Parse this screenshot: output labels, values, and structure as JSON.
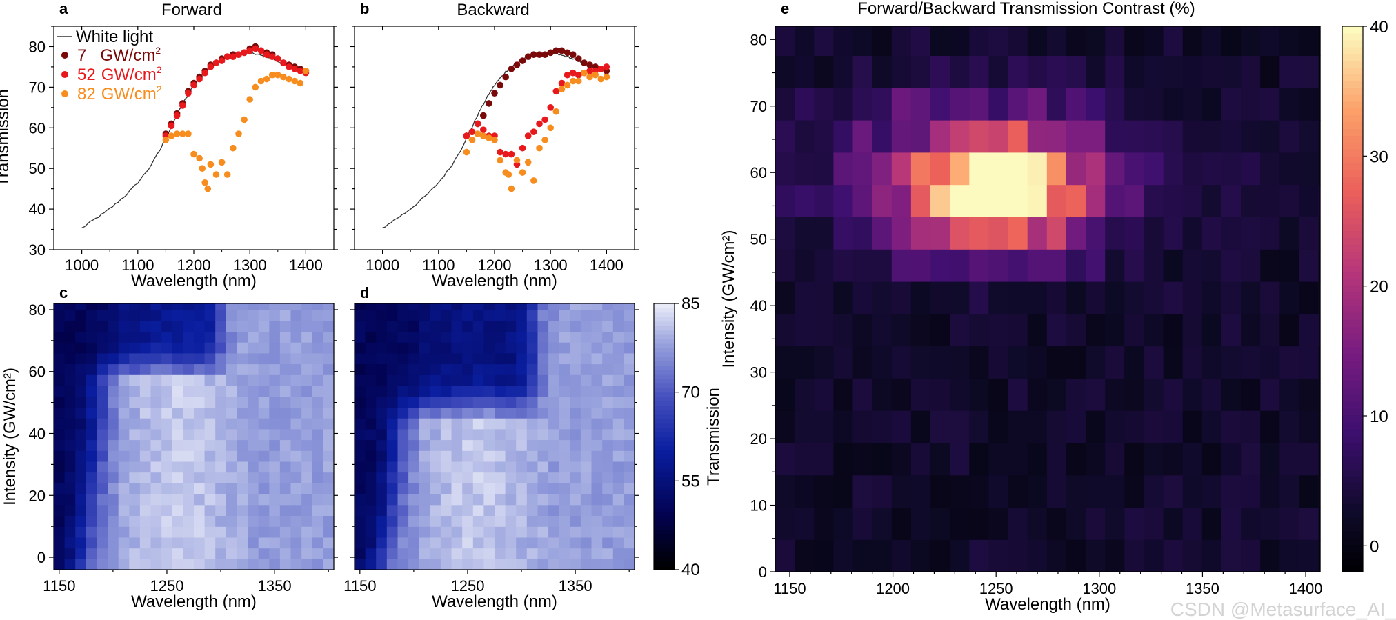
{
  "watermark": "CSDN @Metasurface_AI_",
  "colorbars": {
    "blue": {
      "ticks": [
        "40",
        "55",
        "70",
        "85"
      ],
      "label": "Transmission"
    },
    "magma": {
      "ticks": [
        "0",
        "10",
        "20",
        "30",
        "40"
      ],
      "label": ""
    }
  },
  "chart_data": [
    {
      "id": "a",
      "type": "scatter",
      "panel_label": "a",
      "title": "Forward",
      "xlabel": "Wavelength (nm)",
      "ylabel": "Transmission",
      "xlim": [
        950,
        1450
      ],
      "ylim": [
        30,
        85
      ],
      "xticks": [
        "1000",
        "1100",
        "1200",
        "1300",
        "1400"
      ],
      "yticks": [
        "30",
        "40",
        "50",
        "60",
        "70",
        "80"
      ],
      "legend": {
        "line": "White light",
        "items": [
          {
            "value": "7",
            "unit": "GW/cm",
            "sup": "2",
            "color": "#7a0a0a"
          },
          {
            "value": "52",
            "unit": "GW/cm",
            "sup": "2",
            "color": "#e8191c"
          },
          {
            "value": "82",
            "unit": "GW/cm",
            "sup": "2",
            "color": "#f78d1e"
          }
        ]
      },
      "white_light": {
        "x": [
          1000,
          1020,
          1040,
          1060,
          1080,
          1100,
          1120,
          1140,
          1150,
          1160,
          1170,
          1180,
          1190,
          1200,
          1210,
          1220,
          1230,
          1240,
          1250,
          1260,
          1270,
          1280,
          1290,
          1300,
          1310,
          1320,
          1330,
          1340,
          1350,
          1360,
          1370,
          1380,
          1390,
          1400
        ],
        "y": [
          35.3,
          37.2,
          39,
          41.2,
          43.6,
          46.5,
          50,
          54.6,
          57.5,
          60.2,
          63.2,
          65.8,
          68.3,
          70.5,
          72.2,
          73.8,
          75,
          75.9,
          76.8,
          77.5,
          78,
          78.4,
          78.4,
          78.2,
          78.2,
          77.8,
          77.5,
          77,
          76.3,
          75.8,
          75.4,
          74.8,
          74.4,
          74
        ]
      },
      "series": [
        {
          "name": "7 GW/cm2",
          "color": "#7a0a0a",
          "x": [
            1150,
            1160,
            1170,
            1180,
            1190,
            1200,
            1210,
            1220,
            1230,
            1240,
            1250,
            1260,
            1270,
            1280,
            1290,
            1300,
            1310,
            1320,
            1330,
            1340,
            1350,
            1360,
            1370,
            1380,
            1390,
            1400
          ],
          "y": [
            58.5,
            61,
            63.5,
            66,
            69,
            71,
            72.5,
            74,
            75.5,
            76,
            77,
            77.5,
            78,
            78,
            78.5,
            79.5,
            80,
            79,
            78.5,
            78,
            77,
            76,
            75.5,
            75,
            74.5,
            74
          ]
        },
        {
          "name": "52 GW/cm2",
          "color": "#e8191c",
          "x": [
            1150,
            1160,
            1170,
            1180,
            1190,
            1200,
            1210,
            1220,
            1230,
            1240,
            1250,
            1260,
            1270,
            1280,
            1290,
            1300,
            1310,
            1320,
            1330,
            1340,
            1350,
            1360,
            1370,
            1380,
            1390,
            1400
          ],
          "y": [
            58,
            60.5,
            63,
            65.5,
            68.5,
            70.5,
            72,
            73.5,
            75,
            76,
            76.5,
            77.5,
            77.5,
            78,
            78.5,
            79,
            79.5,
            79,
            78,
            77.5,
            77,
            76,
            75,
            74.5,
            74,
            73.5
          ]
        },
        {
          "name": "82 GW/cm2",
          "color": "#f78d1e",
          "x": [
            1150,
            1160,
            1170,
            1180,
            1190,
            1200,
            1210,
            1215,
            1220,
            1225,
            1230,
            1240,
            1250,
            1260,
            1270,
            1280,
            1290,
            1300,
            1310,
            1320,
            1330,
            1340,
            1350,
            1360,
            1370,
            1380,
            1390,
            1400
          ],
          "y": [
            57,
            58,
            58.5,
            58.5,
            58.5,
            53.5,
            52.5,
            50,
            46.5,
            45,
            51,
            48.5,
            51.5,
            48.5,
            55,
            58.5,
            62,
            67,
            70,
            71.5,
            72,
            73,
            73,
            72.5,
            72,
            71.5,
            71,
            74
          ]
        }
      ]
    },
    {
      "id": "b",
      "type": "scatter",
      "panel_label": "b",
      "title": "Backward",
      "xlabel": "Wavelength (nm)",
      "ylabel": "",
      "xlim": [
        950,
        1450
      ],
      "ylim": [
        30,
        85
      ],
      "xticks": [
        "1000",
        "1100",
        "1200",
        "1300",
        "1400"
      ],
      "yticks": [],
      "white_light": {
        "x": [
          1000,
          1020,
          1040,
          1060,
          1080,
          1100,
          1120,
          1140,
          1150,
          1160,
          1170,
          1180,
          1190,
          1200,
          1210,
          1220,
          1230,
          1240,
          1250,
          1260,
          1270,
          1280,
          1290,
          1300,
          1310,
          1320,
          1330,
          1340,
          1350,
          1360,
          1370,
          1380,
          1390,
          1400
        ],
        "y": [
          35.3,
          37.2,
          39,
          41.2,
          43.6,
          46.5,
          50,
          54.6,
          57.5,
          60.2,
          63.2,
          65.8,
          68.3,
          70.5,
          72.2,
          73.8,
          75,
          75.9,
          76.8,
          77.5,
          78,
          78.4,
          78.4,
          78.2,
          78.2,
          77.8,
          77.5,
          77,
          76.3,
          75.8,
          75.4,
          74.8,
          74.4,
          74
        ]
      },
      "series": [
        {
          "name": "7 GW/cm2",
          "color": "#7a0a0a",
          "x": [
            1150,
            1160,
            1170,
            1180,
            1190,
            1200,
            1210,
            1220,
            1230,
            1240,
            1250,
            1260,
            1270,
            1280,
            1290,
            1300,
            1310,
            1320,
            1330,
            1340,
            1350,
            1360,
            1370,
            1380,
            1390,
            1400
          ],
          "y": [
            58,
            59,
            61,
            63,
            66,
            68.5,
            70.5,
            72.5,
            74.5,
            75.5,
            76.5,
            77.5,
            78,
            78,
            78,
            78.5,
            79,
            79,
            78.5,
            78,
            77,
            76,
            75.5,
            75,
            74.5,
            74
          ]
        },
        {
          "name": "52 GW/cm2",
          "color": "#e8191c",
          "x": [
            1150,
            1160,
            1170,
            1180,
            1190,
            1200,
            1210,
            1220,
            1230,
            1240,
            1250,
            1260,
            1270,
            1280,
            1290,
            1300,
            1310,
            1320,
            1330,
            1340,
            1350,
            1360,
            1370,
            1380,
            1390,
            1400
          ],
          "y": [
            58,
            59,
            61,
            59.5,
            58,
            58,
            54,
            53.5,
            53.5,
            51,
            55,
            58,
            59,
            61,
            62,
            65,
            69,
            71,
            73,
            73.5,
            73,
            73.5,
            74,
            74,
            74.5,
            75
          ]
        },
        {
          "name": "82 GW/cm2",
          "color": "#f78d1e",
          "x": [
            1150,
            1160,
            1170,
            1180,
            1190,
            1200,
            1210,
            1220,
            1225,
            1230,
            1240,
            1250,
            1260,
            1270,
            1280,
            1290,
            1300,
            1310,
            1320,
            1330,
            1340,
            1350,
            1360,
            1370,
            1380,
            1390,
            1400
          ],
          "y": [
            54,
            57,
            58.5,
            58,
            57.5,
            57,
            52,
            49,
            48.5,
            45,
            52,
            49,
            51.5,
            47,
            55,
            57,
            60,
            64,
            69.5,
            70.5,
            71.5,
            71.5,
            73.5,
            72.5,
            73,
            72,
            72.5
          ]
        }
      ]
    },
    {
      "id": "c",
      "type": "heatmap",
      "panel_label": "c",
      "xlabel": "Wavelength (nm)",
      "ylabel": "Intensity (GW/cm²)",
      "xlim": [
        1145,
        1405
      ],
      "ylim": [
        -4,
        82
      ],
      "xticks": [
        "1150",
        "1250",
        "1350"
      ],
      "yticks": [
        "0",
        "20",
        "40",
        "60",
        "80"
      ],
      "colormap": "blue",
      "zlim": [
        40,
        85
      ],
      "cols": 26,
      "rows": 24
    },
    {
      "id": "d",
      "type": "heatmap",
      "panel_label": "d",
      "xlabel": "Wavelength (nm)",
      "ylabel": "",
      "xlim": [
        1145,
        1405
      ],
      "ylim": [
        -4,
        82
      ],
      "xticks": [
        "1150",
        "1250",
        "1350"
      ],
      "yticks": [],
      "colormap": "blue",
      "zlim": [
        40,
        85
      ],
      "cols": 26,
      "rows": 24
    },
    {
      "id": "e",
      "type": "heatmap",
      "panel_label": "e",
      "title": "Forward/Backward Transmission Contrast (%)",
      "xlabel": "Wavelength (nm)",
      "ylabel": "Intensity (GW/cm²)",
      "xlim": [
        1143,
        1407
      ],
      "ylim": [
        0,
        82
      ],
      "xticks": [
        "1150",
        "1200",
        "1250",
        "1300",
        "1350",
        "1400"
      ],
      "yticks": [
        "0",
        "10",
        "20",
        "30",
        "40",
        "50",
        "60",
        "70",
        "80"
      ],
      "colormap": "magma",
      "zlim": [
        -2,
        40
      ],
      "cols": 27,
      "rows": 17
    }
  ]
}
